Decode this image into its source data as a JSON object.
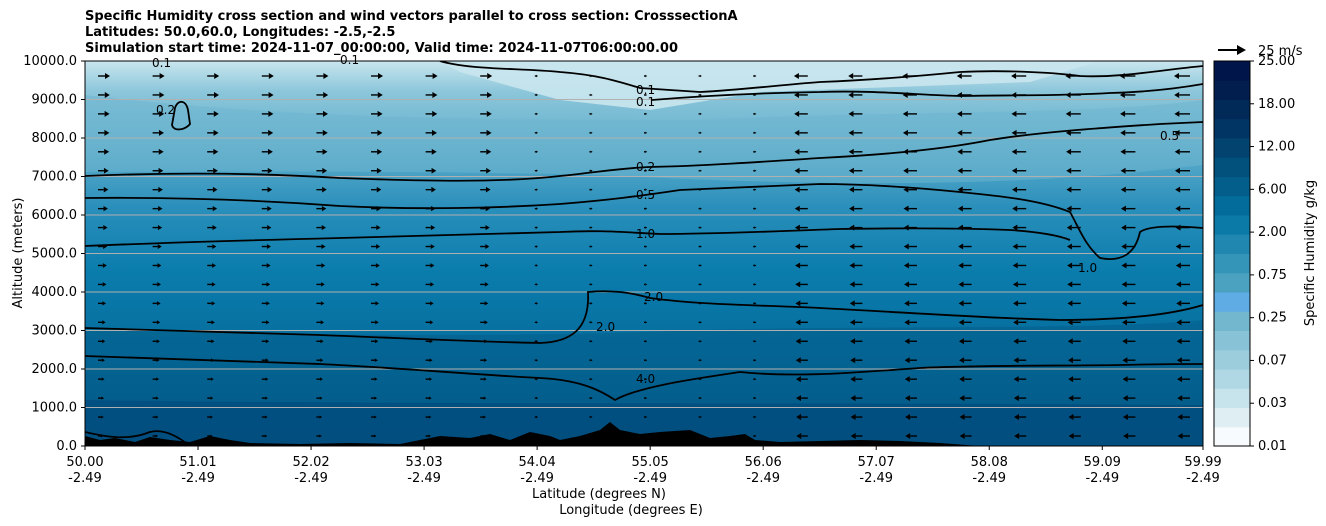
{
  "chart_data": {
    "type": "heatmap",
    "title_lines": [
      "Specific Humidity cross section and wind vectors parallel to cross section: CrosssectionA",
      "Latitudes: 50.0,60.0, Longitudes: -2.5,-2.5",
      "Simulation start time: 2024-11-07_00:00:00, Valid time: 2024-11-07T06:00:00.00"
    ],
    "xlabel_lines": [
      "Latitude (degrees N)",
      "Longitude (degrees E)"
    ],
    "ylabel": "Altitude (meters)",
    "x_ticks": [
      {
        "lat": "50.00",
        "lon": "-2.49"
      },
      {
        "lat": "51.01",
        "lon": "-2.49"
      },
      {
        "lat": "52.02",
        "lon": "-2.49"
      },
      {
        "lat": "53.03",
        "lon": "-2.49"
      },
      {
        "lat": "54.04",
        "lon": "-2.49"
      },
      {
        "lat": "55.05",
        "lon": "-2.49"
      },
      {
        "lat": "56.06",
        "lon": "-2.49"
      },
      {
        "lat": "57.07",
        "lon": "-2.49"
      },
      {
        "lat": "58.08",
        "lon": "-2.49"
      },
      {
        "lat": "59.09",
        "lon": "-2.49"
      },
      {
        "lat": "59.99",
        "lon": "-2.49"
      }
    ],
    "x_range": [
      50.0,
      59.99
    ],
    "y_ticks": [
      "0.0",
      "1000.0",
      "2000.0",
      "3000.0",
      "4000.0",
      "5000.0",
      "6000.0",
      "7000.0",
      "8000.0",
      "9000.0",
      "10000.0"
    ],
    "y_range": [
      0,
      10000
    ],
    "grid": "horizontal",
    "colorbar": {
      "label": "Specific Humidity g/kg",
      "tick_labels": [
        "0.01",
        "0.03",
        "0.07",
        "0.25",
        "0.75",
        "2.00",
        "6.00",
        "12.00",
        "18.00",
        "25.00"
      ],
      "colors": [
        "#f7fbfd",
        "#deeef3",
        "#c7e4ec",
        "#b0d8e4",
        "#9bcddd",
        "#87c2d6",
        "#73b7cf",
        "#5face4",
        "#4aa2c0",
        "#3595b8",
        "#1f87b0",
        "#0c7aa7",
        "#046c9b",
        "#035e8c",
        "#02517d",
        "#024370",
        "#013664",
        "#012a59",
        "#011e4e",
        "#00154a"
      ]
    },
    "wind_key": {
      "label": "25 m/s",
      "speed": 25
    },
    "contours": [
      {
        "level": "0.1",
        "label_x_lat": 55.2,
        "label_y_alt": 9200
      },
      {
        "level": "0.2",
        "label_x_lat": 55.2,
        "label_y_alt": 7050
      },
      {
        "level": "0.5",
        "label_x_lat": 55.2,
        "label_y_alt": 6300
      },
      {
        "level": "1.0",
        "label_x_lat": 55.2,
        "label_y_alt": 5400
      },
      {
        "level": "2.0",
        "label_x_lat": 54.7,
        "label_y_alt": 3100
      },
      {
        "level": "4.0",
        "label_x_lat": 55.2,
        "label_y_alt": 1750
      }
    ]
  },
  "colors": {
    "background_fill": "#0477a5",
    "contour_line": "#000000",
    "terrain": "#000000",
    "grid": "#b0b0b0"
  }
}
